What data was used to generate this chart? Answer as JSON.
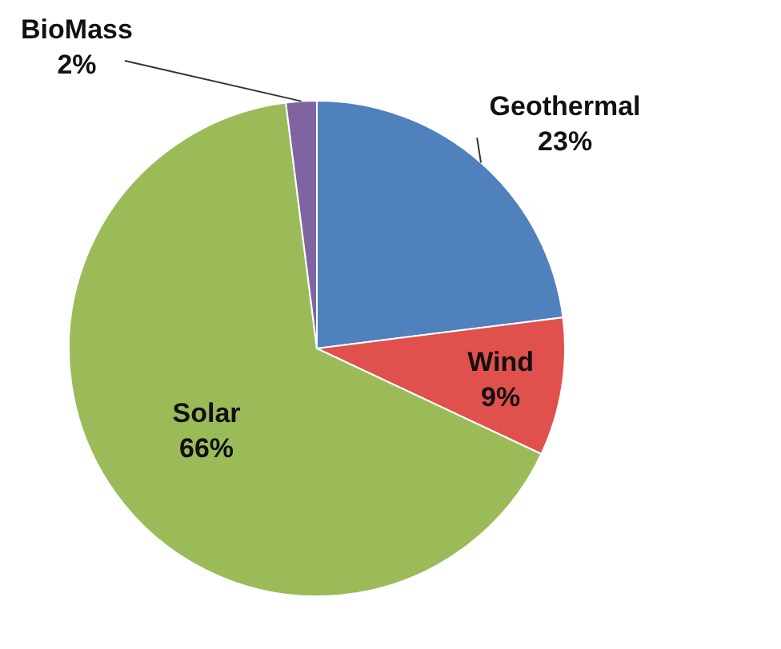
{
  "chart_data": {
    "type": "pie",
    "categories": [
      "Geothermal",
      "Wind",
      "Solar",
      "BioMass"
    ],
    "values": [
      23,
      9,
      66,
      2
    ],
    "colors": [
      "#4f81bd",
      "#e0504d",
      "#9bbb59",
      "#8064a2"
    ],
    "value_labels": [
      "23%",
      "9%",
      "66%",
      "2%"
    ],
    "legend": false
  }
}
